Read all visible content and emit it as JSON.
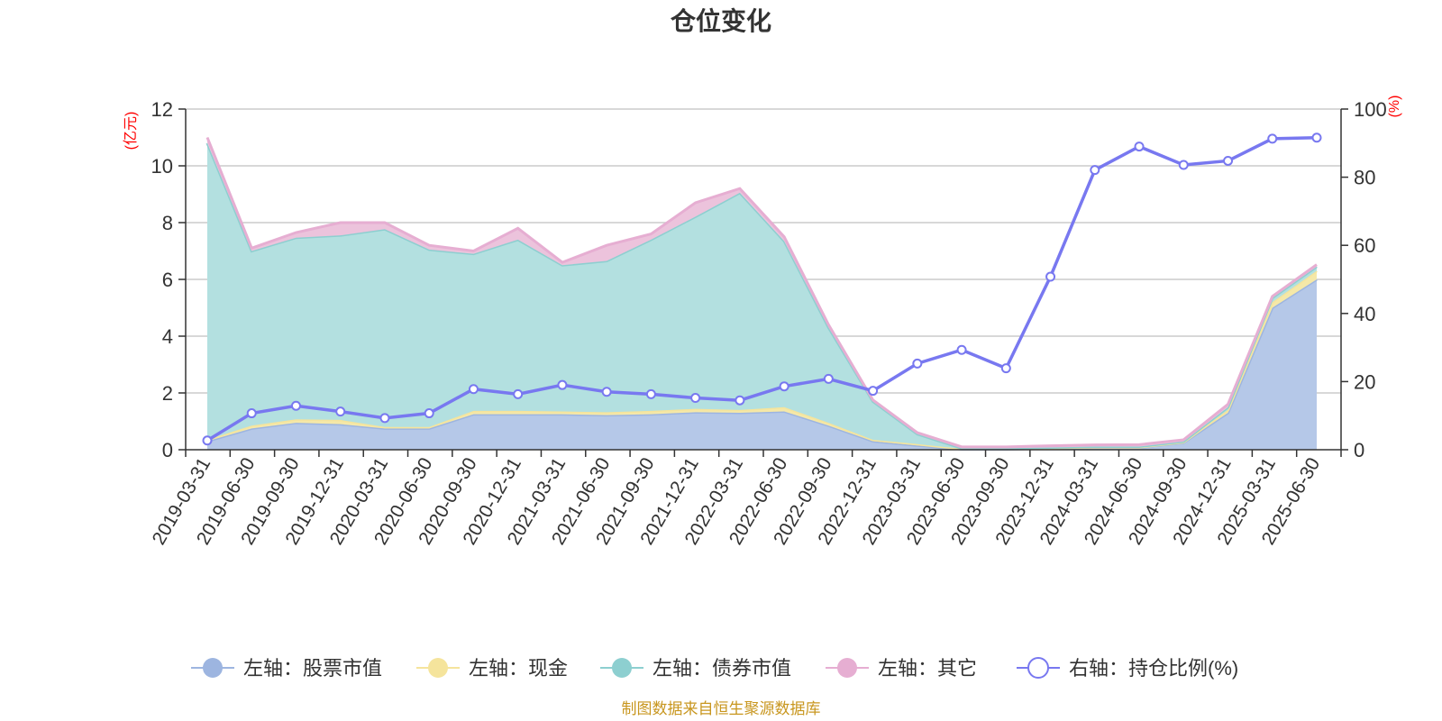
{
  "chart_data": {
    "type": "area",
    "title": "仓位变化",
    "y_left_unit": "(亿元)",
    "y_right_unit": "(%)",
    "ylim_left": [
      0,
      12
    ],
    "ylim_right": [
      0,
      100
    ],
    "y_left_ticks": [
      "0",
      "2",
      "4",
      "6",
      "8",
      "10",
      "12"
    ],
    "y_right_ticks": [
      "0",
      "20",
      "40",
      "60",
      "80",
      "100"
    ],
    "grid": true,
    "legend_position": "bottom",
    "categories": [
      "2019-03-31",
      "2019-06-30",
      "2019-09-30",
      "2019-12-31",
      "2020-03-31",
      "2020-06-30",
      "2020-09-30",
      "2020-12-31",
      "2021-03-31",
      "2021-06-30",
      "2021-09-30",
      "2021-12-31",
      "2022-03-31",
      "2022-06-30",
      "2022-09-30",
      "2022-12-31",
      "2023-03-31",
      "2023-06-30",
      "2023-09-30",
      "2023-12-31",
      "2024-03-31",
      "2024-06-30",
      "2024-09-30",
      "2024-12-31",
      "2025-03-31",
      "2025-06-30"
    ],
    "series": [
      {
        "name": "左轴：股票市值",
        "axis": "left",
        "color": "#9db5e0",
        "fill": "#b5c8e8",
        "values": [
          0.3,
          0.75,
          0.95,
          0.9,
          0.75,
          0.75,
          1.25,
          1.25,
          1.25,
          1.22,
          1.25,
          1.32,
          1.3,
          1.35,
          0.85,
          0.3,
          0.15,
          0.02,
          0.02,
          0.05,
          0.08,
          0.08,
          0.25,
          1.3,
          5.0,
          6.0
        ]
      },
      {
        "name": "左轴：现金",
        "axis": "left",
        "color": "#f5e49c",
        "fill": "#f5e8a8",
        "values": [
          0.05,
          0.1,
          0.12,
          0.15,
          0.05,
          0.05,
          0.12,
          0.12,
          0.1,
          0.1,
          0.12,
          0.12,
          0.1,
          0.15,
          0.1,
          0.05,
          0.05,
          0.01,
          0.01,
          0.01,
          0.01,
          0.01,
          0.02,
          0.1,
          0.2,
          0.3
        ]
      },
      {
        "name": "左轴：债券市值",
        "axis": "left",
        "color": "#8dcfd0",
        "fill": "#b3e0e0",
        "values": [
          10.45,
          6.15,
          6.4,
          6.5,
          6.97,
          6.25,
          5.53,
          6.03,
          5.15,
          5.33,
          6.03,
          6.77,
          7.65,
          5.85,
          3.35,
          1.35,
          0.35,
          0.02,
          0.02,
          0.02,
          0.02,
          0.02,
          0.02,
          0.1,
          0.15,
          0.15
        ]
      },
      {
        "name": "左轴：其它",
        "axis": "left",
        "color": "#e6aed2",
        "fill": "#ecc3dc",
        "values": [
          0.2,
          0.1,
          0.18,
          0.45,
          0.23,
          0.15,
          0.1,
          0.4,
          0.1,
          0.55,
          0.2,
          0.49,
          0.15,
          0.15,
          0.1,
          0.05,
          0.05,
          0.05,
          0.05,
          0.06,
          0.06,
          0.07,
          0.06,
          0.1,
          0.05,
          0.07
        ]
      },
      {
        "name": "右轴：持仓比例(%)",
        "axis": "right",
        "color": "#7878f0",
        "values": [
          2.7,
          10.7,
          12.9,
          11.2,
          9.3,
          10.7,
          17.8,
          16.3,
          19.0,
          17.0,
          16.3,
          15.2,
          14.5,
          18.6,
          20.8,
          17.3,
          25.3,
          29.3,
          23.9,
          50.8,
          82.1,
          89.0,
          83.6,
          84.8,
          91.3,
          91.6
        ]
      }
    ],
    "source_text": "制图数据来自恒生聚源数据库"
  }
}
